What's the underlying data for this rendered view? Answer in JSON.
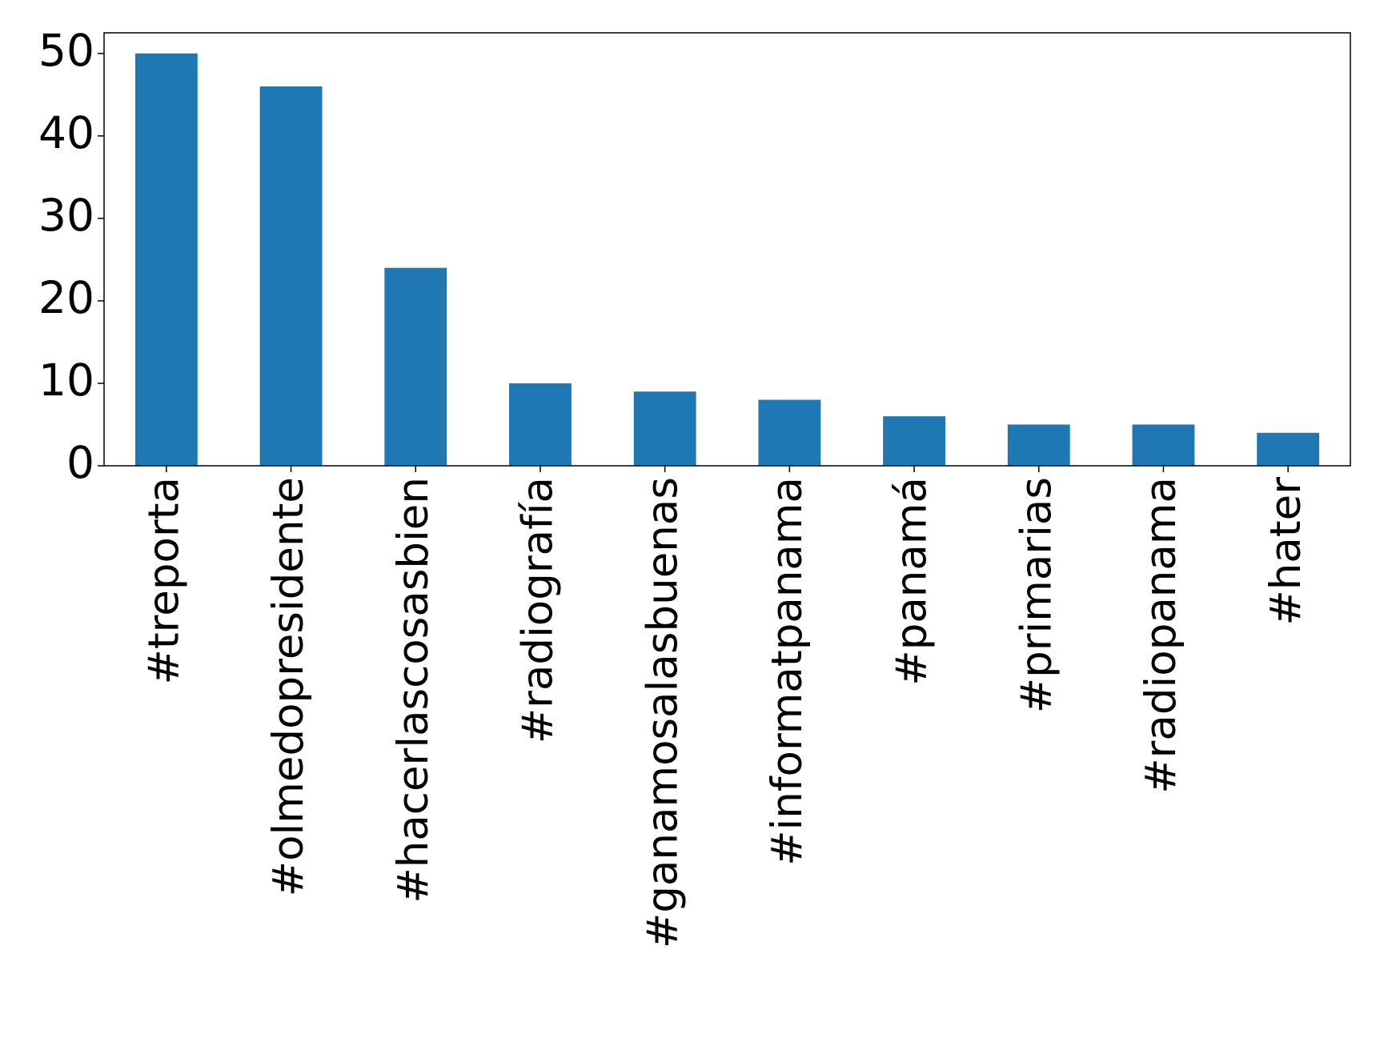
{
  "chart_data": {
    "type": "bar",
    "categories": [
      "#treporta",
      "#olmedopresidente",
      "#hacerlascosasbien",
      "#radiografía",
      "#ganamosalasbuenas",
      "#informatpanama",
      "#panamá",
      "#primarias",
      "#radiopanama",
      "#hater"
    ],
    "values": [
      50,
      46,
      24,
      10,
      9,
      8,
      6,
      5,
      5,
      4
    ],
    "color": "#1f77b4",
    "ylim": [
      0,
      52.5
    ],
    "yticks": [
      0,
      10,
      20,
      30,
      40,
      50
    ],
    "grid": false
  }
}
